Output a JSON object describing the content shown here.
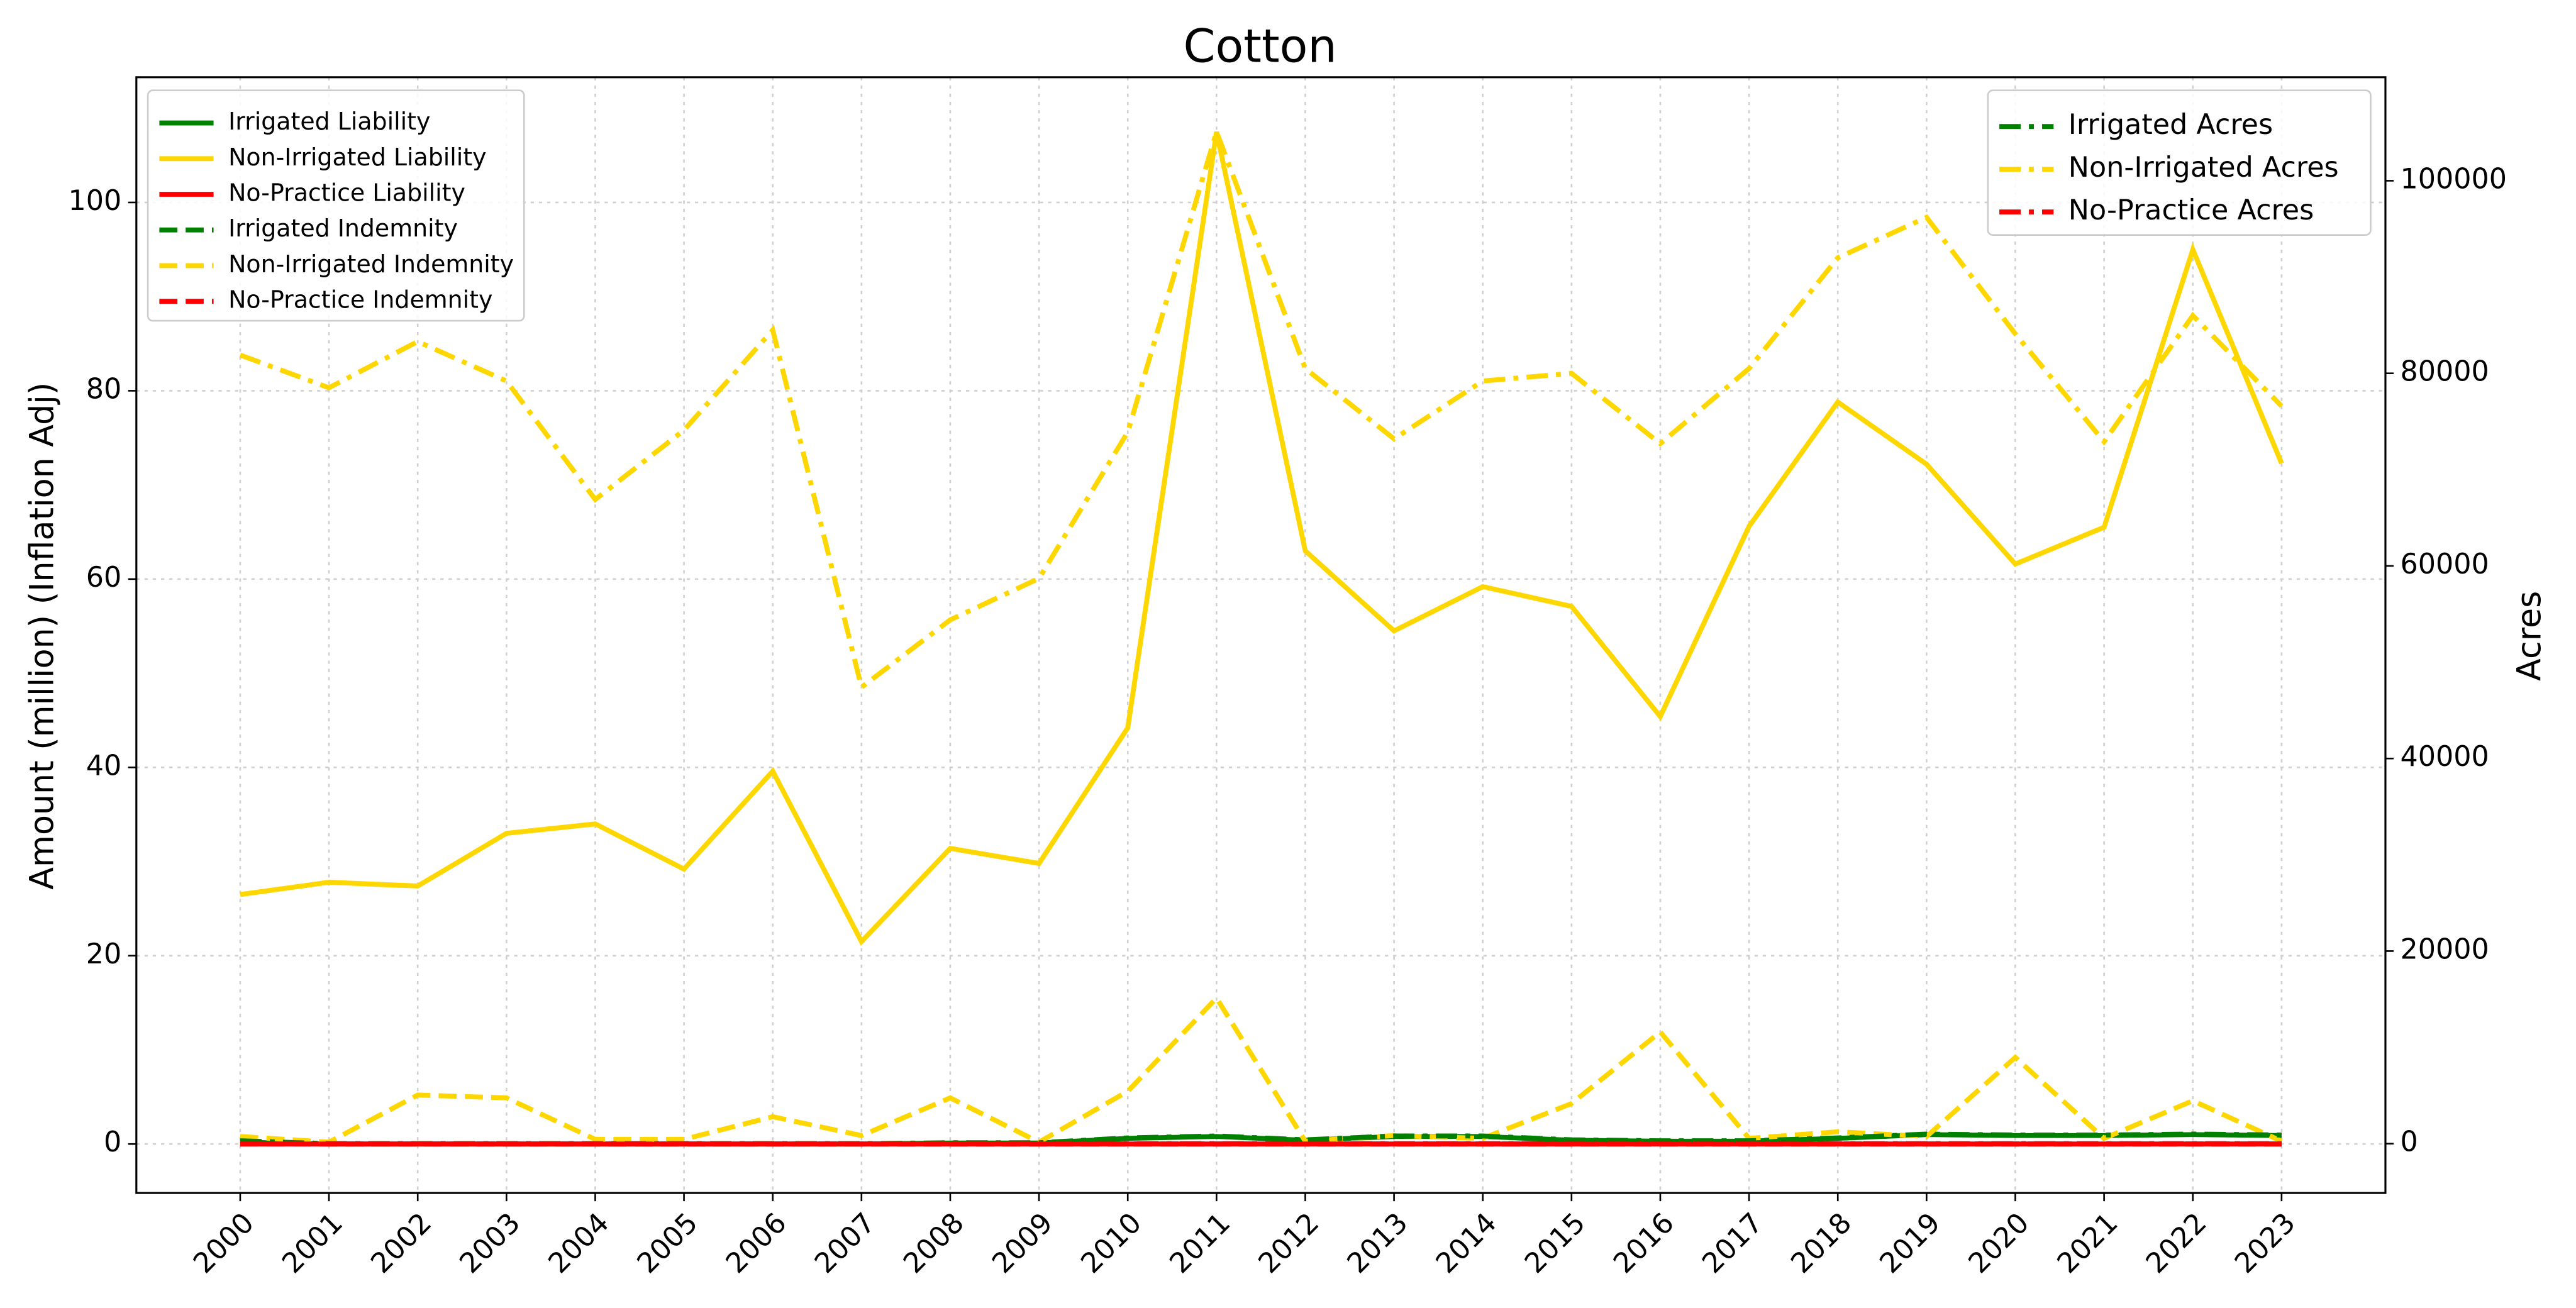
{
  "chart_data": {
    "type": "line",
    "title": "Cotton",
    "y_label": "Amount (million) (Inflation Adj)",
    "y2_label": "Acres",
    "x": [
      2000,
      2001,
      2002,
      2003,
      2004,
      2005,
      2006,
      2007,
      2008,
      2009,
      2010,
      2011,
      2012,
      2013,
      2014,
      2015,
      2016,
      2017,
      2018,
      2019,
      2020,
      2021,
      2022,
      2023
    ],
    "xlim": [
      1998.83,
      2024.17
    ],
    "xticks": [
      2000,
      2001,
      2002,
      2003,
      2004,
      2005,
      2006,
      2007,
      2008,
      2009,
      2010,
      2011,
      2012,
      2013,
      2014,
      2015,
      2016,
      2017,
      2018,
      2019,
      2020,
      2021,
      2022,
      2023
    ],
    "ylim": [
      -5.2,
      113.3
    ],
    "yticks": [
      0,
      20,
      40,
      60,
      80,
      100
    ],
    "y2lim": [
      -5120,
      110750
    ],
    "y2ticks": [
      0,
      20000,
      40000,
      60000,
      80000,
      100000
    ],
    "grid": true,
    "legend_loc": "upper left",
    "y2_legend_loc": "upper right",
    "series": [
      {
        "name": "Irrigated Liability",
        "color": "#008000",
        "linestyle": "solid",
        "values": [
          0.2,
          0,
          0,
          0,
          0,
          0,
          0,
          0,
          0.1,
          0.1,
          0.6,
          0.8,
          0.4,
          0.8,
          0.8,
          0.4,
          0.3,
          0.3,
          0.6,
          1.0,
          0.9,
          0.9,
          1.0,
          0.9
        ]
      },
      {
        "name": "Non-Irrigated Liability",
        "color": "#ffd700",
        "linestyle": "solid",
        "values": [
          26.5,
          27.8,
          27.4,
          33,
          34,
          29.2,
          39.6,
          21.5,
          31.4,
          29.8,
          44.2,
          107.5,
          63,
          54.5,
          59.2,
          57.1,
          45.4,
          65.6,
          78.8,
          72.2,
          61.6,
          65.5,
          95,
          72.3
        ]
      },
      {
        "name": "No-Practice Liability",
        "color": "#ff0000",
        "linestyle": "solid",
        "values": [
          0,
          0,
          0,
          0,
          0,
          0,
          0,
          0,
          0,
          0,
          0,
          0,
          0,
          0,
          0,
          0,
          0,
          0,
          0,
          0,
          0,
          0,
          0,
          0
        ]
      },
      {
        "name": "Irrigated Indemnity",
        "color": "#008000",
        "linestyle": "dashed",
        "values": [
          0.1,
          0,
          0,
          0,
          0,
          0,
          0,
          0,
          0,
          0,
          0,
          0,
          0,
          0,
          0,
          0,
          0,
          0,
          0,
          0,
          0,
          0,
          0,
          0
        ]
      },
      {
        "name": "Non-Irrigated Indemnity",
        "color": "#ffd700",
        "linestyle": "dashed",
        "values": [
          0.8,
          0.2,
          5.2,
          4.9,
          0.5,
          0.5,
          2.9,
          0.9,
          4.9,
          0.2,
          5.6,
          15.5,
          0.3,
          0.9,
          0.6,
          4.3,
          11.9,
          0.6,
          1.3,
          0.8,
          9.2,
          0.6,
          4.6,
          0.3
        ]
      },
      {
        "name": "No-Practice Indemnity",
        "color": "#ff0000",
        "linestyle": "dashed",
        "values": [
          0,
          0,
          0,
          0,
          0,
          0,
          0,
          0,
          0,
          0,
          0,
          0,
          0,
          0,
          0,
          0,
          0,
          0,
          0,
          0,
          0,
          0,
          0,
          0
        ]
      },
      {
        "name": "Irrigated Acres",
        "color": "#008000",
        "linestyle": "dashdot",
        "axis": "y2",
        "values": [
          300,
          0,
          0,
          0,
          0,
          0,
          0,
          0,
          100,
          100,
          600,
          800,
          400,
          800,
          800,
          400,
          300,
          300,
          600,
          1000,
          900,
          900,
          1000,
          900
        ]
      },
      {
        "name": "Non-Irrigated Acres",
        "color": "#ffd700",
        "linestyle": "dashdot",
        "axis": "y2",
        "values": [
          81900,
          78500,
          83300,
          79200,
          66900,
          74100,
          84500,
          47400,
          54400,
          58700,
          73900,
          105100,
          80500,
          73200,
          79200,
          80000,
          72700,
          80500,
          92000,
          96200,
          84100,
          72900,
          86000,
          76600
        ]
      },
      {
        "name": "No-Practice Acres",
        "color": "#ff0000",
        "linestyle": "dashdot",
        "axis": "y2",
        "values": [
          0,
          0,
          0,
          0,
          0,
          0,
          0,
          0,
          0,
          0,
          0,
          0,
          0,
          0,
          0,
          0,
          0,
          0,
          0,
          0,
          0,
          0,
          0,
          0
        ]
      }
    ]
  }
}
